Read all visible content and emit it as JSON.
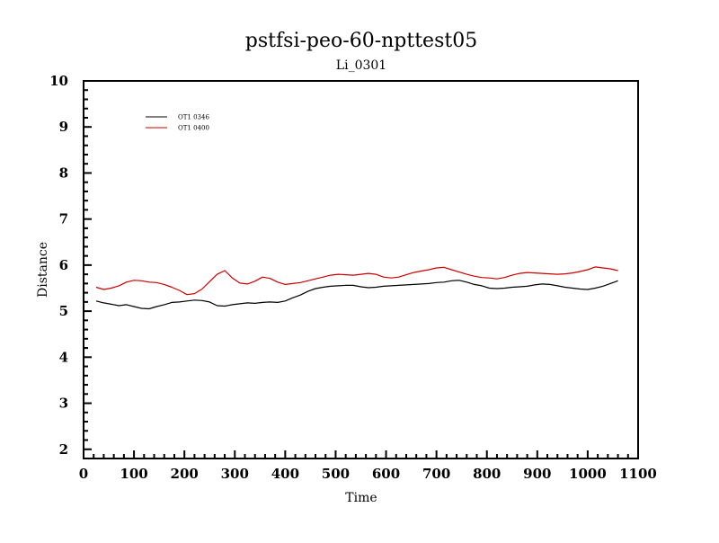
{
  "chart_data": {
    "type": "line",
    "title": "pstfsi-peo-60-npttest05",
    "subtitle": "Li_0301",
    "xlabel": "Time",
    "ylabel": "Distance",
    "xlim": [
      0,
      1100
    ],
    "ylim": [
      1.8,
      10
    ],
    "xticks": [
      0,
      100,
      200,
      300,
      400,
      500,
      600,
      700,
      800,
      900,
      1000,
      1100
    ],
    "yticks": [
      2,
      3,
      4,
      5,
      6,
      7,
      8,
      9,
      10
    ],
    "legend_placement": "top-left",
    "grid": false,
    "series": [
      {
        "name": "OT1 0346",
        "color": "#000000",
        "x": [
          25,
          40,
          55,
          70,
          85,
          100,
          115,
          130,
          145,
          160,
          175,
          190,
          205,
          220,
          235,
          250,
          265,
          280,
          295,
          310,
          325,
          340,
          355,
          370,
          385,
          400,
          415,
          430,
          445,
          460,
          475,
          490,
          505,
          520,
          535,
          550,
          565,
          580,
          595,
          610,
          625,
          640,
          655,
          670,
          685,
          700,
          715,
          730,
          745,
          760,
          775,
          790,
          805,
          820,
          835,
          850,
          865,
          880,
          895,
          910,
          925,
          940,
          955,
          970,
          985,
          1000,
          1015,
          1030,
          1045,
          1060
        ],
        "y": [
          5.22,
          5.18,
          5.15,
          5.12,
          5.14,
          5.1,
          5.06,
          5.05,
          5.1,
          5.14,
          5.19,
          5.2,
          5.22,
          5.24,
          5.23,
          5.2,
          5.12,
          5.11,
          5.14,
          5.16,
          5.18,
          5.17,
          5.19,
          5.2,
          5.19,
          5.22,
          5.29,
          5.35,
          5.43,
          5.49,
          5.52,
          5.54,
          5.55,
          5.56,
          5.56,
          5.53,
          5.51,
          5.52,
          5.54,
          5.55,
          5.56,
          5.57,
          5.58,
          5.59,
          5.6,
          5.62,
          5.63,
          5.66,
          5.67,
          5.63,
          5.58,
          5.55,
          5.5,
          5.49,
          5.5,
          5.52,
          5.53,
          5.54,
          5.57,
          5.59,
          5.58,
          5.55,
          5.52,
          5.5,
          5.48,
          5.47,
          5.5,
          5.54,
          5.6,
          5.66
        ]
      },
      {
        "name": "OT1 0400",
        "color": "#cc0000",
        "x": [
          25,
          40,
          55,
          70,
          85,
          100,
          115,
          130,
          145,
          160,
          175,
          190,
          205,
          220,
          235,
          250,
          265,
          280,
          295,
          310,
          325,
          340,
          355,
          370,
          385,
          400,
          415,
          430,
          445,
          460,
          475,
          490,
          505,
          520,
          535,
          550,
          565,
          580,
          595,
          610,
          625,
          640,
          655,
          670,
          685,
          700,
          715,
          730,
          745,
          760,
          775,
          790,
          805,
          820,
          835,
          850,
          865,
          880,
          895,
          910,
          925,
          940,
          955,
          970,
          985,
          1000,
          1015,
          1030,
          1045,
          1060
        ],
        "y": [
          5.52,
          5.47,
          5.5,
          5.55,
          5.63,
          5.67,
          5.66,
          5.63,
          5.62,
          5.58,
          5.52,
          5.45,
          5.36,
          5.38,
          5.48,
          5.64,
          5.8,
          5.88,
          5.72,
          5.61,
          5.59,
          5.65,
          5.74,
          5.71,
          5.63,
          5.58,
          5.6,
          5.62,
          5.66,
          5.7,
          5.74,
          5.78,
          5.8,
          5.79,
          5.78,
          5.8,
          5.82,
          5.8,
          5.74,
          5.72,
          5.74,
          5.79,
          5.84,
          5.87,
          5.9,
          5.94,
          5.95,
          5.9,
          5.85,
          5.8,
          5.76,
          5.73,
          5.72,
          5.7,
          5.73,
          5.78,
          5.82,
          5.84,
          5.83,
          5.82,
          5.81,
          5.8,
          5.81,
          5.83,
          5.86,
          5.9,
          5.96,
          5.94,
          5.92,
          5.88
        ]
      }
    ]
  }
}
